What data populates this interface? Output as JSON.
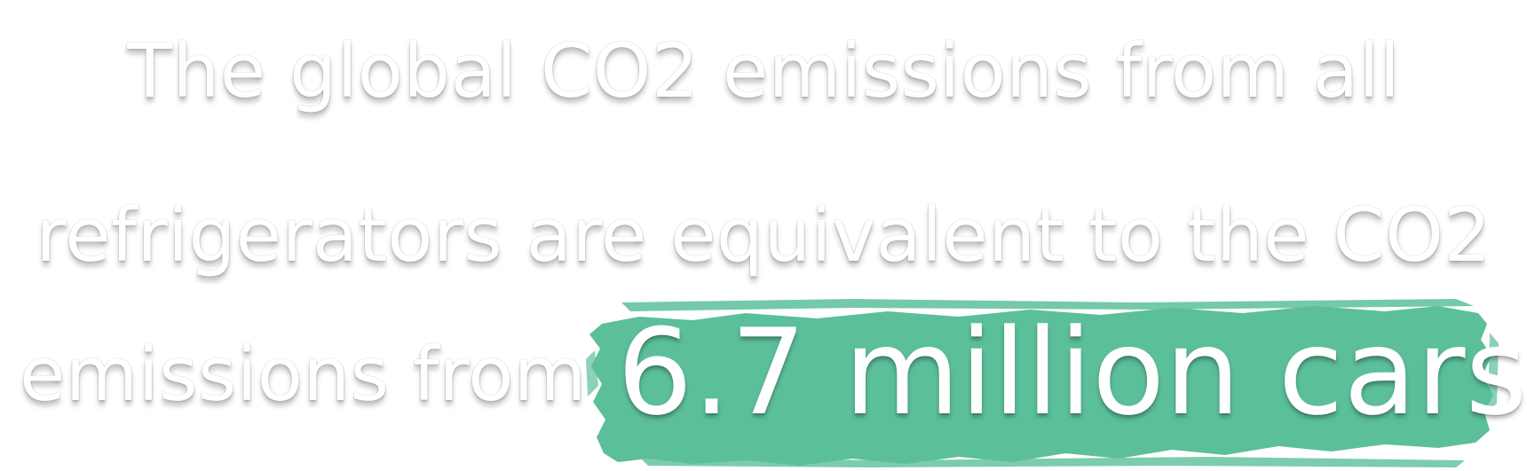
{
  "statement": {
    "line1": "The global CO2 emissions from all",
    "line2": "refrigerators are equivalent to the CO2",
    "line3_prefix": "emissions from",
    "highlight": "6.7 million cars."
  },
  "colors": {
    "text": "#ffffff",
    "highlight_brush": "#5bbf9a",
    "background": "#ffffff"
  }
}
